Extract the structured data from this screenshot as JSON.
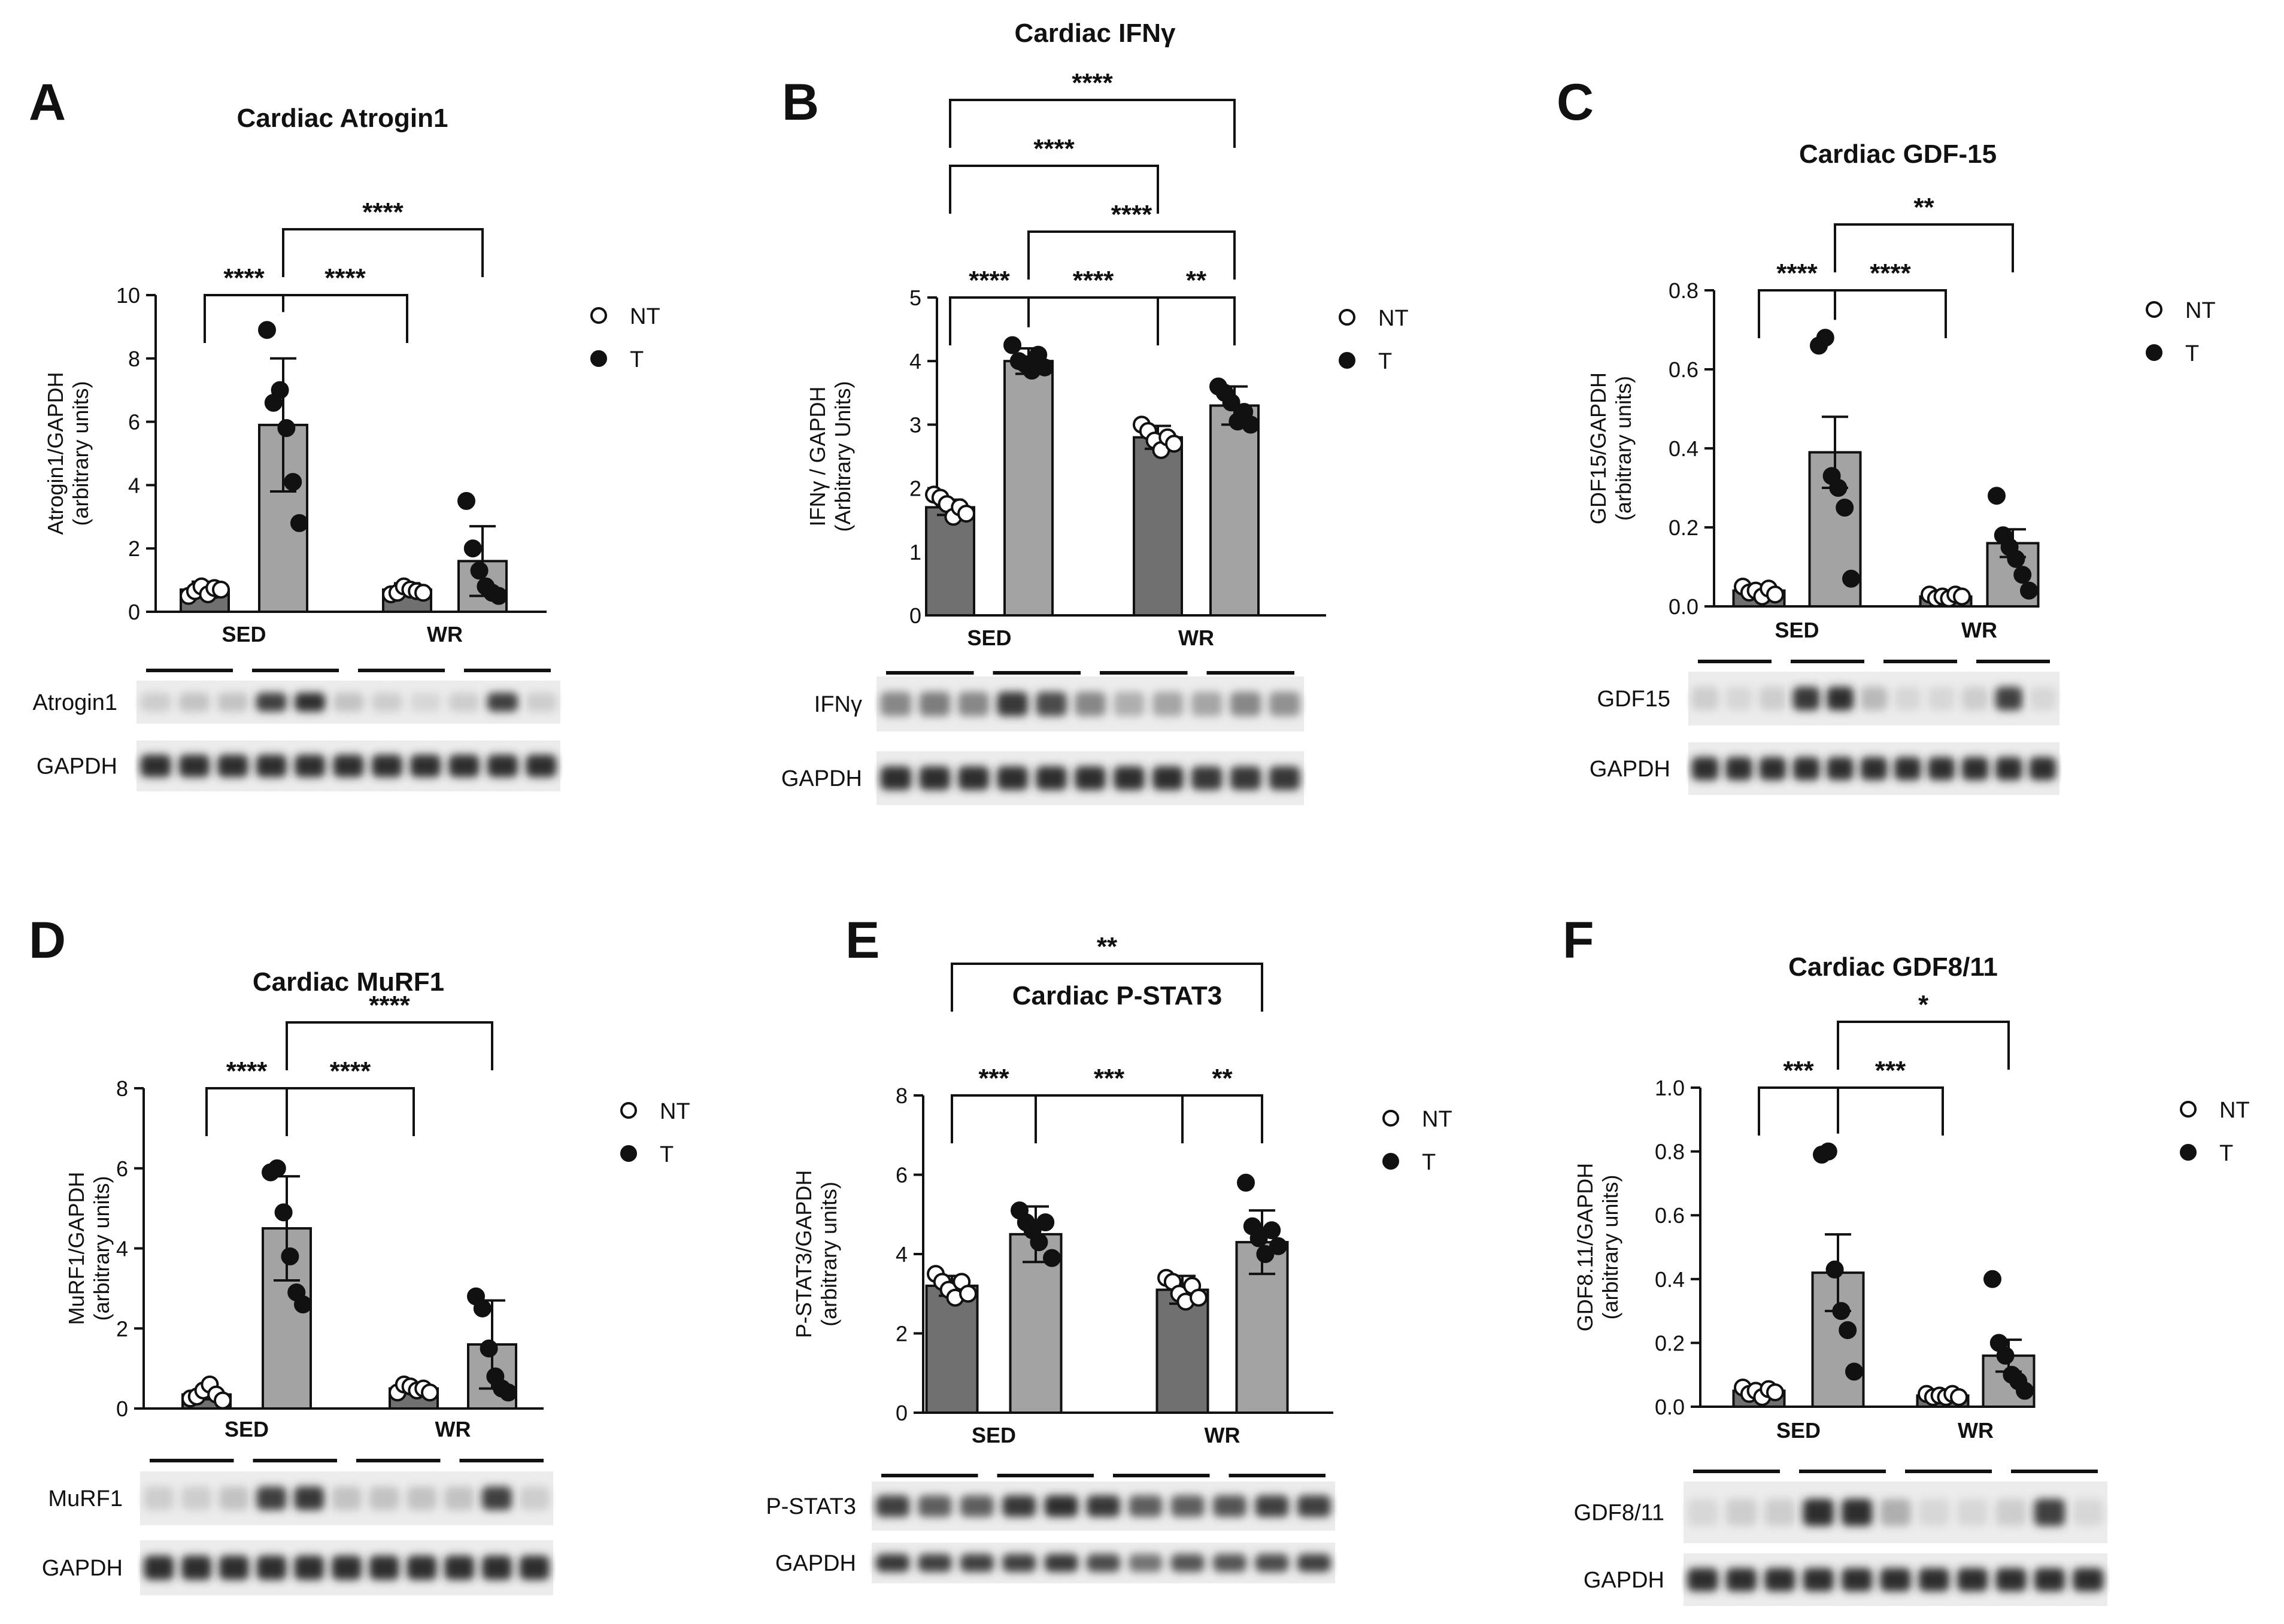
{
  "figure": {
    "legend_entries": [
      "NT",
      "T"
    ],
    "blot_labels": {
      "A": [
        "Atrogin1",
        "GAPDH"
      ],
      "B": [
        "IFNγ",
        "GAPDH"
      ],
      "C": [
        "GDF15",
        "GAPDH"
      ],
      "D": [
        "MuRF1",
        "GAPDH"
      ],
      "E": [
        "P-STAT3",
        "GAPDH"
      ],
      "F": [
        "GDF8/11",
        "GAPDH"
      ]
    }
  },
  "chart_data": [
    {
      "panel": "A",
      "type": "bar",
      "title": "Cardiac Atrogin1",
      "ylabel": [
        "Atrogin1/GAPDH",
        "(arbitrary units)"
      ],
      "ylim": [
        0,
        10
      ],
      "yticks": [
        0,
        2,
        4,
        6,
        8,
        10
      ],
      "yformat": 0,
      "groups": [
        "SED",
        "WR"
      ],
      "series": [
        {
          "name": "NT",
          "fill": "#707070",
          "marker": "open",
          "values": [
            0.7,
            0.7
          ],
          "error": [
            0.25,
            0.2
          ],
          "points": [
            [
              0.5,
              0.65,
              0.8,
              0.55,
              0.75,
              0.7
            ],
            [
              0.55,
              0.6,
              0.8,
              0.7,
              0.65,
              0.6
            ]
          ]
        },
        {
          "name": "T",
          "fill": "#a3a3a3",
          "marker": "filled",
          "values": [
            5.9,
            1.6
          ],
          "error": [
            2.1,
            1.1
          ],
          "points": [
            [
              8.9,
              6.6,
              7.0,
              5.8,
              4.1,
              2.8
            ],
            [
              3.5,
              2.0,
              1.3,
              0.8,
              0.6,
              0.5
            ]
          ]
        }
      ],
      "comparisons": [
        {
          "from": 0,
          "to": 1,
          "label": "****"
        },
        {
          "from": 1,
          "to": 2,
          "label": "****"
        },
        {
          "from": 1,
          "to": 3,
          "label": "****"
        }
      ]
    },
    {
      "panel": "B",
      "type": "bar",
      "title": "Cardiac IFNγ",
      "ylabel": [
        "IFNγ / GAPDH",
        "(Arbitrary Units)"
      ],
      "ylim": [
        0,
        5
      ],
      "yticks": [
        0,
        1,
        2,
        3,
        4,
        5
      ],
      "yformat": 0,
      "groups": [
        "SED",
        "WR"
      ],
      "series": [
        {
          "name": "NT",
          "fill": "#707070",
          "marker": "open",
          "values": [
            1.7,
            2.8
          ],
          "error": [
            0.12,
            0.18
          ],
          "points": [
            [
              1.9,
              1.85,
              1.75,
              1.55,
              1.7,
              1.6
            ],
            [
              3.0,
              2.9,
              2.75,
              2.6,
              2.8,
              2.7
            ]
          ]
        },
        {
          "name": "T",
          "fill": "#a3a3a3",
          "marker": "filled",
          "values": [
            4.0,
            3.3
          ],
          "error": [
            0.2,
            0.3
          ],
          "points": [
            [
              4.25,
              4.0,
              3.95,
              3.85,
              4.1,
              3.9
            ],
            [
              3.6,
              3.5,
              3.35,
              3.05,
              3.2,
              3.0
            ]
          ]
        }
      ],
      "comparisons": [
        {
          "from": 0,
          "to": 1,
          "label": "****"
        },
        {
          "from": 1,
          "to": 2,
          "label": "****"
        },
        {
          "from": 2,
          "to": 3,
          "label": "**"
        },
        {
          "from": 1,
          "to": 3,
          "label": "****"
        },
        {
          "from": 0,
          "to": 2,
          "label": "****"
        },
        {
          "from": 0,
          "to": 3,
          "label": "****"
        }
      ]
    },
    {
      "panel": "C",
      "type": "bar",
      "title": "Cardiac GDF-15",
      "ylabel": [
        "GDF15/GAPDH",
        "(arbitrary units)"
      ],
      "ylim": [
        0,
        0.8
      ],
      "yticks": [
        0.0,
        0.2,
        0.4,
        0.6,
        0.8
      ],
      "yformat": 1,
      "groups": [
        "SED",
        "WR"
      ],
      "series": [
        {
          "name": "NT",
          "fill": "#707070",
          "marker": "open",
          "values": [
            0.04,
            0.025
          ],
          "error": [
            0.006,
            0.004
          ],
          "points": [
            [
              0.05,
              0.035,
              0.04,
              0.025,
              0.045,
              0.03
            ],
            [
              0.03,
              0.02,
              0.025,
              0.02,
              0.03,
              0.025
            ]
          ]
        },
        {
          "name": "T",
          "fill": "#a3a3a3",
          "marker": "filled",
          "values": [
            0.39,
            0.16
          ],
          "error": [
            0.09,
            0.035
          ],
          "points": [
            [
              0.66,
              0.68,
              0.33,
              0.3,
              0.25,
              0.07
            ],
            [
              0.28,
              0.18,
              0.15,
              0.12,
              0.08,
              0.04
            ]
          ]
        }
      ],
      "comparisons": [
        {
          "from": 0,
          "to": 1,
          "label": "****"
        },
        {
          "from": 1,
          "to": 2,
          "label": "****"
        },
        {
          "from": 1,
          "to": 3,
          "label": "**"
        }
      ]
    },
    {
      "panel": "D",
      "type": "bar",
      "title": "Cardiac MuRF1",
      "ylabel": [
        "MuRF1/GAPDH",
        "(arbitrary units)"
      ],
      "ylim": [
        0,
        8
      ],
      "yticks": [
        0,
        2,
        4,
        6,
        8
      ],
      "yformat": 0,
      "groups": [
        "SED",
        "WR"
      ],
      "series": [
        {
          "name": "NT",
          "fill": "#707070",
          "marker": "open",
          "values": [
            0.35,
            0.5
          ],
          "error": [
            0.12,
            0.12
          ],
          "points": [
            [
              0.25,
              0.3,
              0.45,
              0.6,
              0.35,
              0.2
            ],
            [
              0.4,
              0.6,
              0.55,
              0.45,
              0.5,
              0.4
            ]
          ]
        },
        {
          "name": "T",
          "fill": "#a3a3a3",
          "marker": "filled",
          "values": [
            4.5,
            1.6
          ],
          "error": [
            1.3,
            1.1
          ],
          "points": [
            [
              5.9,
              6.0,
              4.9,
              3.8,
              2.9,
              2.6
            ],
            [
              2.8,
              2.5,
              1.5,
              0.8,
              0.5,
              0.4
            ]
          ]
        }
      ],
      "comparisons": [
        {
          "from": 0,
          "to": 1,
          "label": "****"
        },
        {
          "from": 1,
          "to": 2,
          "label": "****"
        },
        {
          "from": 1,
          "to": 3,
          "label": "****"
        }
      ]
    },
    {
      "panel": "E",
      "type": "bar",
      "title": "Cardiac P-STAT3",
      "ylabel": [
        "P-STAT3/GAPDH",
        "(arbitrary units)"
      ],
      "ylim": [
        0,
        8
      ],
      "yticks": [
        0,
        2,
        4,
        6,
        8
      ],
      "yformat": 0,
      "groups": [
        "SED",
        "WR"
      ],
      "series": [
        {
          "name": "NT",
          "fill": "#707070",
          "marker": "open",
          "values": [
            3.2,
            3.1
          ],
          "error": [
            0.25,
            0.35
          ],
          "points": [
            [
              3.5,
              3.3,
              3.1,
              2.9,
              3.3,
              3.0
            ],
            [
              3.4,
              3.3,
              3.0,
              2.8,
              3.2,
              2.9
            ]
          ]
        },
        {
          "name": "T",
          "fill": "#a3a3a3",
          "marker": "filled",
          "values": [
            4.5,
            4.3
          ],
          "error": [
            0.7,
            0.8
          ],
          "points": [
            [
              5.1,
              4.8,
              4.6,
              4.3,
              4.8,
              3.9
            ],
            [
              5.8,
              4.7,
              4.4,
              4.0,
              4.6,
              4.2
            ]
          ]
        }
      ],
      "comparisons": [
        {
          "from": 0,
          "to": 1,
          "label": "***"
        },
        {
          "from": 1,
          "to": 2,
          "label": "***"
        },
        {
          "from": 2,
          "to": 3,
          "label": "**"
        },
        {
          "from": 0,
          "to": 3,
          "label": "**"
        }
      ]
    },
    {
      "panel": "F",
      "type": "bar",
      "title": "Cardiac GDF8/11",
      "ylabel": [
        "GDF8.11/GAPDH",
        "(arbitrary units)"
      ],
      "ylim": [
        0,
        1.0
      ],
      "yticks": [
        0.0,
        0.2,
        0.4,
        0.6,
        0.8,
        1.0
      ],
      "yformat": 1,
      "groups": [
        "SED",
        "WR"
      ],
      "series": [
        {
          "name": "NT",
          "fill": "#707070",
          "marker": "open",
          "values": [
            0.05,
            0.035
          ],
          "error": [
            0.01,
            0.005
          ],
          "points": [
            [
              0.06,
              0.04,
              0.05,
              0.03,
              0.055,
              0.045
            ],
            [
              0.04,
              0.03,
              0.035,
              0.03,
              0.04,
              0.03
            ]
          ]
        },
        {
          "name": "T",
          "fill": "#a3a3a3",
          "marker": "filled",
          "values": [
            0.42,
            0.16
          ],
          "error": [
            0.12,
            0.05
          ],
          "points": [
            [
              0.79,
              0.8,
              0.43,
              0.3,
              0.24,
              0.11
            ],
            [
              0.4,
              0.2,
              0.16,
              0.1,
              0.08,
              0.05
            ]
          ]
        }
      ],
      "comparisons": [
        {
          "from": 0,
          "to": 1,
          "label": "***"
        },
        {
          "from": 1,
          "to": 2,
          "label": "***"
        },
        {
          "from": 1,
          "to": 3,
          "label": "*"
        }
      ]
    }
  ]
}
